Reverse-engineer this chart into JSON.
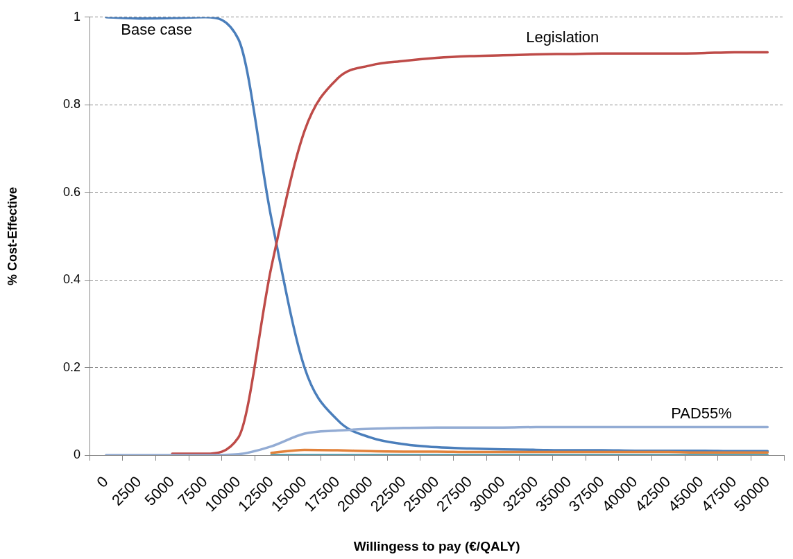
{
  "chart_data": {
    "type": "line",
    "xlabel": "Willingess to pay (€/QALY)",
    "ylabel": "% Cost-Effective",
    "categories": [
      "0",
      "2500",
      "5000",
      "7500",
      "10000",
      "12500",
      "15000",
      "17500",
      "20000",
      "22500",
      "25000",
      "27500",
      "30000",
      "32500",
      "35000",
      "37500",
      "40000",
      "42500",
      "45000",
      "47500",
      "50000"
    ],
    "series": [
      {
        "color": "#4f9aab",
        "values": [
          null,
          null,
          null,
          null,
          null,
          0,
          0,
          0,
          0,
          0,
          0,
          0,
          0,
          0,
          0,
          0,
          0,
          0,
          0,
          0,
          0
        ]
      },
      {
        "name": "Base case",
        "color": "#4a7ebb",
        "values": [
          1.0,
          0.997,
          0.998,
          1.0,
          0.95,
          0.54,
          0.2,
          0.08,
          0.04,
          0.025,
          0.018,
          0.015,
          0.013,
          0.012,
          0.011,
          0.011,
          0.01,
          0.01,
          0.01,
          0.009,
          0.009
        ]
      },
      {
        "color": "#e2823a",
        "values": [
          null,
          null,
          null,
          null,
          null,
          0.005,
          0.012,
          0.011,
          0.009,
          0.008,
          0.008,
          0.007,
          0.007,
          0.007,
          0.007,
          0.007,
          0.007,
          0.007,
          0.006,
          0.006,
          0.006
        ]
      },
      {
        "name": "Legislation",
        "color": "#be4b48",
        "values": [
          null,
          null,
          0.003,
          0.003,
          0.04,
          0.43,
          0.74,
          0.86,
          0.89,
          0.9,
          0.907,
          0.911,
          0.913,
          0.915,
          0.916,
          0.917,
          0.917,
          0.917,
          0.918,
          0.92,
          0.92
        ]
      },
      {
        "name": "PAD55%",
        "color": "#93acd4",
        "values": [
          0,
          0,
          0,
          0,
          0.002,
          0.02,
          0.049,
          0.056,
          0.06,
          0.062,
          0.063,
          0.063,
          0.063,
          0.064,
          0.064,
          0.064,
          0.064,
          0.064,
          0.064,
          0.064,
          0.064
        ]
      }
    ],
    "ylim": [
      0,
      1
    ],
    "yticks": [
      0,
      0.2,
      0.4,
      0.6,
      0.8,
      1
    ],
    "grid": "y",
    "legend": false
  }
}
